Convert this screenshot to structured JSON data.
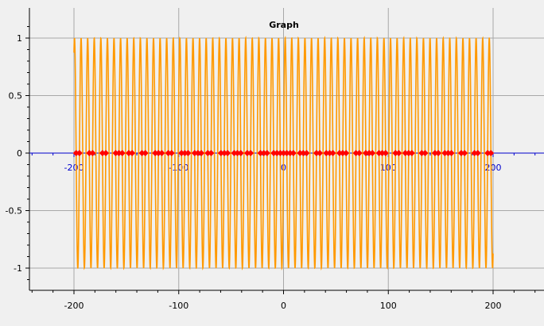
{
  "chart_data": {
    "type": "line",
    "title": "Graph",
    "xlabel": "",
    "ylabel": "",
    "xlim": [
      -240,
      240
    ],
    "ylim": [
      -1.2,
      1.2
    ],
    "grid": true,
    "x_ticks": [
      -200,
      -100,
      0,
      100,
      200
    ],
    "x_tick_labels": [
      "-200",
      "-100",
      "0",
      "100",
      "200"
    ],
    "y_ticks": [
      -1,
      -0.5,
      0,
      0.5,
      1
    ],
    "y_tick_labels": [
      "-1",
      "-0.5",
      "0",
      "0.5",
      "1"
    ],
    "inner_axis": {
      "y": 0,
      "tick_labels": [
        "-200",
        "-100",
        "0",
        "100",
        "200"
      ],
      "color": "#0000cc"
    },
    "series": [
      {
        "function": "sin",
        "x_range": [
          -200,
          200
        ],
        "amplitude": 1,
        "color": "#ff9900",
        "style": "line"
      },
      {
        "x": [
          -197.9,
          -194.8,
          -185.4,
          -182.2,
          -172.8,
          -169.6,
          -160.2,
          -157.1,
          -153.9,
          -147.7,
          -144.5,
          -135.1,
          -131.9,
          -122.5,
          -119.4,
          -116.2,
          -110.0,
          -106.8,
          -97.4,
          -94.2,
          -91.1,
          -84.8,
          -81.7,
          -78.5,
          -72.3,
          -69.1,
          -59.7,
          -56.5,
          -53.4,
          -47.1,
          -44.0,
          -40.8,
          -34.6,
          -31.4,
          -22.0,
          -18.8,
          -15.7,
          -9.4,
          -6.3,
          -3.1,
          0.0,
          3.1,
          6.3,
          9.4,
          15.7,
          18.8,
          22.0,
          31.4,
          34.6,
          40.8,
          44.0,
          47.1,
          53.4,
          56.5,
          59.7,
          69.1,
          72.3,
          78.5,
          81.7,
          84.8,
          91.1,
          94.2,
          97.4,
          106.8,
          110.0,
          116.2,
          119.4,
          122.5,
          131.9,
          135.1,
          144.5,
          147.7,
          153.9,
          157.1,
          160.2,
          169.6,
          172.8,
          182.2,
          185.4,
          194.8,
          197.9
        ],
        "y_value": 0,
        "color": "#ff0000",
        "style": "markers",
        "marker": "diamond"
      }
    ]
  }
}
